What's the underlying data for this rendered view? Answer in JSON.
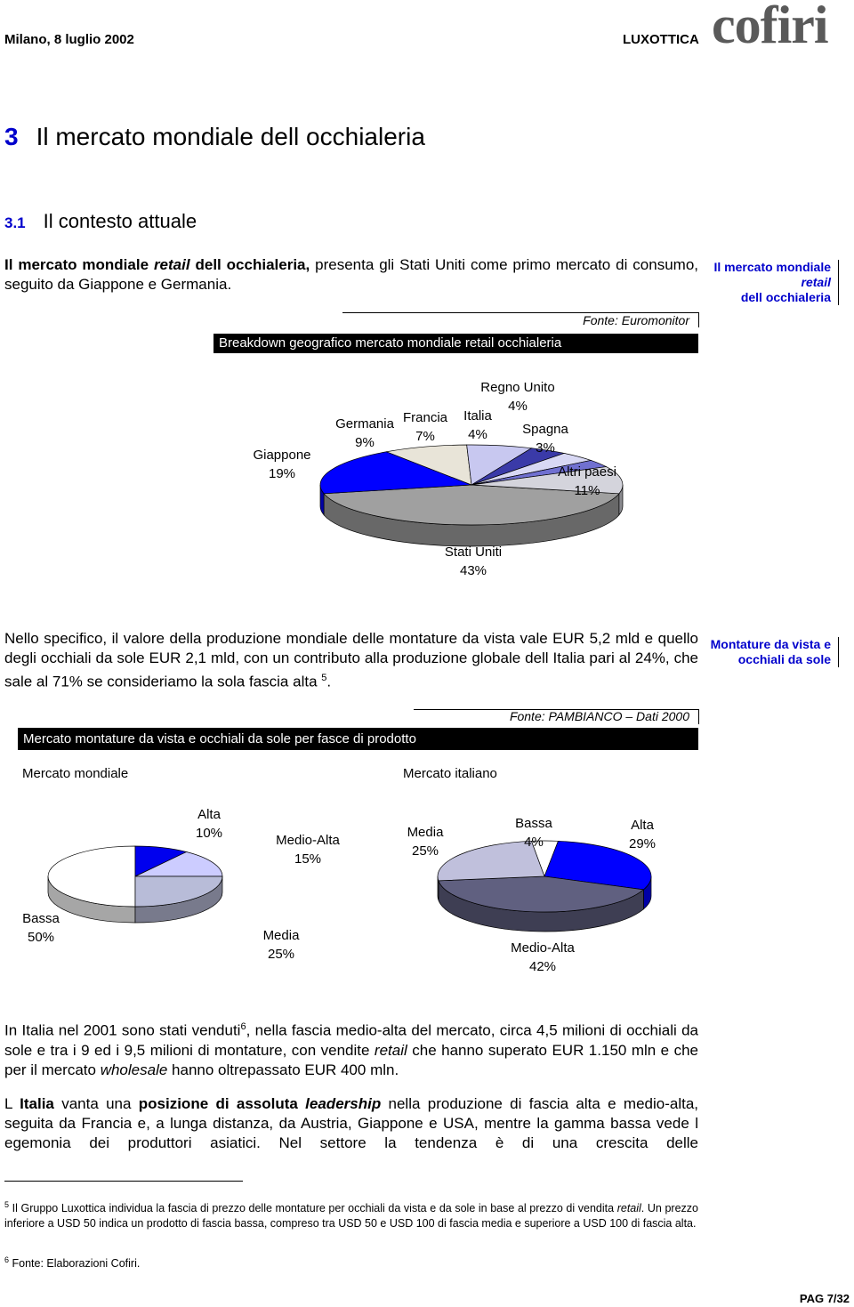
{
  "header": {
    "date": "Milano, 8 luglio 2002",
    "company": "LUXOTTICA",
    "logo": "cofiri"
  },
  "section": {
    "number": "3",
    "title": "Il mercato mondiale dell occhialeria"
  },
  "subsection": {
    "number": "3.1",
    "title": "Il contesto attuale"
  },
  "paragraph1": [
    "Il mercato mondiale ",
    "retail",
    " dell occhialeria,",
    " presenta gli Stati Uniti come primo mercato di consumo, seguito da Giappone e Germania."
  ],
  "sidenote1": [
    "Il mercato mondiale ",
    "retail",
    " dell occhialeria"
  ],
  "paragraph2": [
    "Nello specifico, il valore della produzione mondiale delle montature da vista vale EUR 5,2 mld e quello degli occhiali da sole EUR 2,1 mld, con un contributo alla produzione globale dell Italia pari al 24%, che sale al 71% se consideriamo la sola fascia alta",
    "5",
    "."
  ],
  "sidenote2": "Montature da vista e occhiali da sole",
  "figure2": {
    "title": "Mercato montature da vista e occhiali da sole per fasce di prodotto",
    "source": "Fonte: PAMBIANCO – Dati 2000"
  },
  "paragraph3": [
    "In Italia nel 2001 sono stati venduti",
    "6",
    ", nella fascia medio-alta del mercato, circa 4,5 milioni di occhiali da sole e tra i 9 ed i 9,5 milioni di montature, con vendite ",
    "retail",
    " che hanno superato EUR 1.150 mln e che per il mercato ",
    "wholesale",
    " hanno oltrepassato EUR 400 mln."
  ],
  "paragraph4": [
    "L ",
    "Italia",
    " vanta una ",
    "posizione di assoluta ",
    "leadership",
    " nella produzione di fascia alta e medio-alta, seguita da Francia e, a lunga distanza, da Austria, Giappone e USA, mentre la gamma bassa vede l egemonia dei produttori asiatici. Nel settore la tendenza è di una crescita delle"
  ],
  "footnotes": [
    {
      "number": "5",
      "text": [
        "Il Gruppo Luxottica individua la fascia di prezzo delle montature per occhiali da vista e da sole in base al prezzo di vendita ",
        "retail",
        ". Un prezzo inferiore a USD 50 indica un prodotto di fascia bassa, compreso tra USD 50 e USD 100 di fascia media e superiore a USD 100 di fascia alta."
      ]
    },
    {
      "number": "6",
      "text": [
        "Fonte: Elaborazioni Cofiri."
      ]
    }
  ],
  "page": "PAG 7/32",
  "chart_data": [
    {
      "type": "pie",
      "title": "Breakdown geografico mercato mondiale retail occhialeria",
      "source": "Fonte: Euromonitor",
      "categories": [
        "Stati Uniti",
        "Giappone",
        "Germania",
        "Francia",
        "Italia",
        "Regno Unito",
        "Spagna",
        "Altri paesi"
      ],
      "values": [
        43,
        19,
        9,
        7,
        4,
        4,
        3,
        11
      ],
      "value_labels": [
        "43%",
        "19%",
        "9%",
        "7%",
        "4%",
        "4%",
        "3%",
        "11%"
      ],
      "colors": [
        "#a0a0a0",
        "#0000ff",
        "#e8e4d8",
        "#c8c8f0",
        "#3a3aa8",
        "#d8d8f4",
        "#7070d0",
        "#d4d4dc"
      ]
    },
    {
      "type": "pie",
      "title": "Mercato mondiale",
      "categories": [
        "Bassa",
        "Alta",
        "Medio-Alta",
        "Media"
      ],
      "values": [
        50,
        10,
        15,
        25
      ],
      "value_labels": [
        "50%",
        "10%",
        "15%",
        "25%"
      ],
      "colors": [
        "#ffffff",
        "#0000ee",
        "#ccccff",
        "#b8bcd8"
      ]
    },
    {
      "type": "pie",
      "title": "Mercato italiano",
      "categories": [
        "Bassa",
        "Alta",
        "Medio-Alta",
        "Media"
      ],
      "values": [
        4,
        29,
        42,
        25
      ],
      "value_labels": [
        "4%",
        "29%",
        "42%",
        "25%"
      ],
      "colors": [
        "#ffffff",
        "#0000ff",
        "#606080",
        "#c0c0dc"
      ]
    }
  ]
}
